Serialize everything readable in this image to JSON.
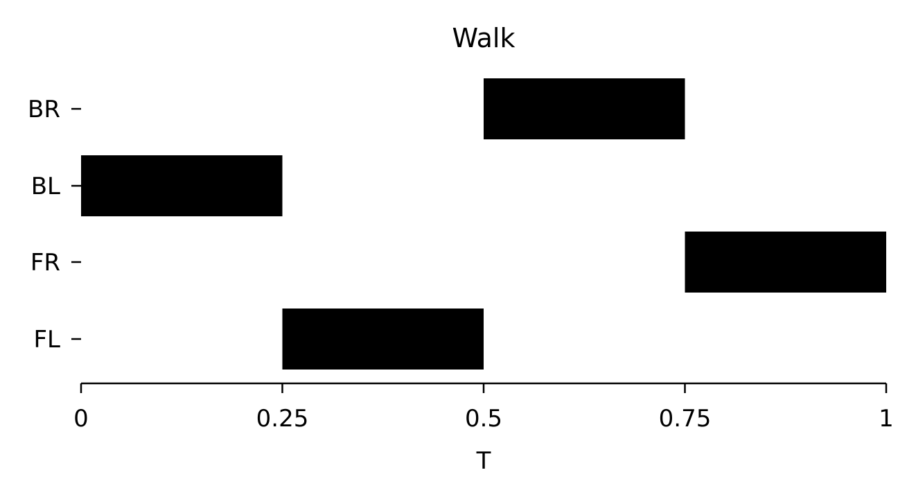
{
  "chart_data": {
    "type": "bar",
    "orientation": "horizontal-broken",
    "title": "Walk",
    "xlabel": "T",
    "ylabel": "",
    "xlim": [
      0,
      1
    ],
    "x_ticks": [
      0,
      0.25,
      0.5,
      0.75,
      1
    ],
    "x_tick_labels": [
      "0",
      "0.25",
      "0.5",
      "0.75",
      "1"
    ],
    "categories": [
      "BR",
      "BL",
      "FR",
      "FL"
    ],
    "series": [
      {
        "category": "BR",
        "start": 0.5,
        "end": 0.75
      },
      {
        "category": "BL",
        "start": 0.0,
        "end": 0.25
      },
      {
        "category": "FR",
        "start": 0.75,
        "end": 1.0
      },
      {
        "category": "FL",
        "start": 0.25,
        "end": 0.5
      }
    ],
    "bar_color": "#000000",
    "grid": false,
    "legend": "none"
  }
}
